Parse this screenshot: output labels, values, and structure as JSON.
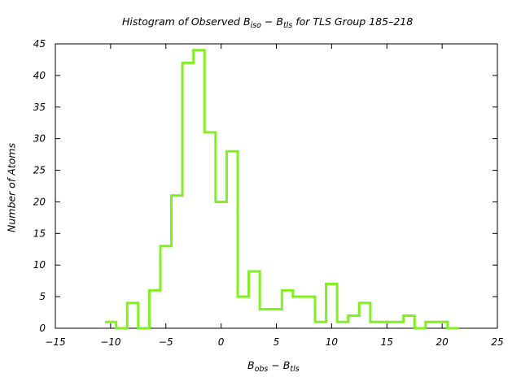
{
  "chart_data": {
    "type": "bar",
    "style": "step-histogram",
    "title": {
      "prefix": "Histogram of Observed B",
      "sub1": "iso",
      "mid": " − B",
      "sub2": "tls",
      "suffix": " for TLS Group 185–218"
    },
    "xlabel": {
      "main1": "B",
      "sub1": "obs",
      "main2": " − B",
      "sub2": "tls"
    },
    "ylabel": "Number of Atoms",
    "xlim": [
      -15,
      25
    ],
    "ylim": [
      0,
      45
    ],
    "x_ticks": [
      -15,
      -10,
      -5,
      0,
      5,
      10,
      15,
      20,
      25
    ],
    "y_ticks": [
      0,
      5,
      10,
      15,
      20,
      25,
      30,
      35,
      40,
      45
    ],
    "line_color": "#80f020",
    "bin_edges": [
      -10.5,
      -9.5,
      -8.5,
      -7.5,
      -6.5,
      -5.5,
      -4.5,
      -3.5,
      -2.5,
      -1.5,
      -0.5,
      0.5,
      1.5,
      2.5,
      3.5,
      4.5,
      5.5,
      6.5,
      7.5,
      8.5,
      9.5,
      10.5,
      11.5,
      12.5,
      13.5,
      14.5,
      15.5,
      16.5,
      17.5,
      18.5,
      19.5,
      20.5,
      21.5
    ],
    "values": [
      1,
      0,
      4,
      0,
      6,
      13,
      21,
      42,
      44,
      31,
      20,
      28,
      5,
      9,
      3,
      3,
      6,
      5,
      5,
      1,
      7,
      1,
      2,
      4,
      1,
      1,
      1,
      2,
      0,
      1,
      1,
      0
    ]
  }
}
